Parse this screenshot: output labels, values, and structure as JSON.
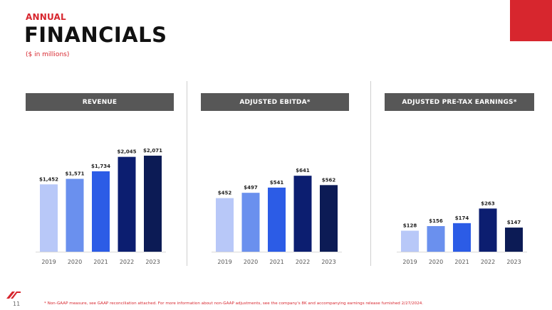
{
  "header": {
    "eyebrow": "ANNUAL",
    "title": "FINANCIALS",
    "units": "($ in millions)"
  },
  "panels": [
    {
      "title": "REVENUE"
    },
    {
      "title": "ADJUSTED EBITDA*"
    },
    {
      "title": "ADJUSTED PRE-TAX EARNINGS*"
    }
  ],
  "colors": {
    "accent": "#d7262e",
    "header_bg": "#575757",
    "bars": [
      "#b8c8f8",
      "#6a90ee",
      "#2c5ce6",
      "#0c1e70",
      "#0c1b55"
    ]
  },
  "chart_data": [
    {
      "type": "bar",
      "title": "REVENUE",
      "categories": [
        "2019",
        "2020",
        "2021",
        "2022",
        "2023"
      ],
      "values": [
        1452,
        1571,
        1734,
        2045,
        2071
      ],
      "labels": [
        "$1,452",
        "$1,571",
        "$1,734",
        "$2,045",
        "$2,071"
      ],
      "ylim": [
        0,
        2300
      ],
      "grid": false
    },
    {
      "type": "bar",
      "title": "ADJUSTED EBITDA*",
      "categories": [
        "2019",
        "2020",
        "2021",
        "2022",
        "2023"
      ],
      "values": [
        452,
        497,
        541,
        641,
        562
      ],
      "labels": [
        "$452",
        "$497",
        "$541",
        "$641",
        "$562"
      ],
      "ylim": [
        0,
        900
      ],
      "grid": false
    },
    {
      "type": "bar",
      "title": "ADJUSTED PRE-TAX EARNINGS*",
      "categories": [
        "2019",
        "2020",
        "2021",
        "2022",
        "2023"
      ],
      "values": [
        128,
        156,
        174,
        263,
        147
      ],
      "labels": [
        "$128",
        "$156",
        "$174",
        "$263",
        "$147"
      ],
      "ylim": [
        0,
        650
      ],
      "grid": false
    }
  ],
  "footer": {
    "page_number": "11",
    "footnote": "* Non-GAAP measure, see GAAP reconciliation attached. For more information about non-GAAP adjustments, see the company's 8K and accompanying earnings release furnished 2/27/2024."
  }
}
